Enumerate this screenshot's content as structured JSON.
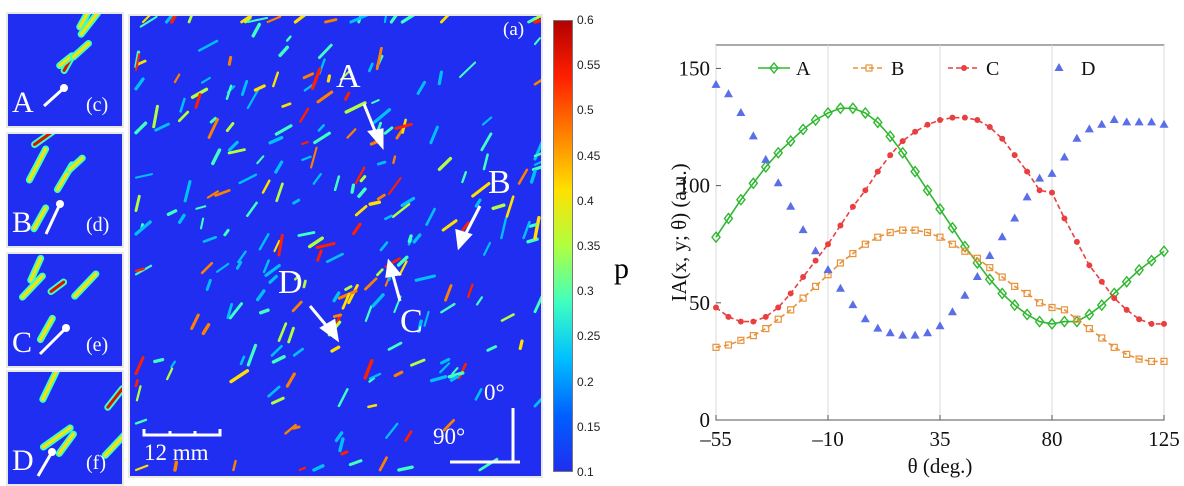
{
  "insets": [
    {
      "point": "A",
      "tag": "(c)"
    },
    {
      "point": "B",
      "tag": "(d)"
    },
    {
      "point": "C",
      "tag": "(e)"
    },
    {
      "point": "D",
      "tag": "(f)"
    }
  ],
  "main_panel": {
    "tag": "(a)",
    "points": [
      "A",
      "B",
      "C",
      "D"
    ],
    "scale_bar": "12 mm",
    "orient_0": "0°",
    "orient_90": "90°"
  },
  "colorbar": {
    "label": "p",
    "ticks": [
      "0.6",
      "0.55",
      "0.5",
      "0.45",
      "0.4",
      "0.35",
      "0.3",
      "0.25",
      "0.2",
      "0.15",
      "0.1"
    ],
    "colors": [
      "#b30000",
      "#ff2000",
      "#ff8000",
      "#ffe000",
      "#b0ff40",
      "#40ffc0",
      "#00c0ff",
      "#0060ff",
      "#1f2ef0"
    ]
  },
  "chart_data": {
    "type": "line",
    "xlabel": "θ (deg.)",
    "ylabel": "IA(x, y; θ) (a.u.)",
    "xlim": [
      -55,
      125
    ],
    "ylim": [
      0,
      160
    ],
    "xticks": [
      "-55",
      "-10",
      "35",
      "80",
      "125"
    ],
    "yticks": [
      "0",
      "50",
      "100",
      "150"
    ],
    "grid": "vertical",
    "legend": "top",
    "x": [
      -55,
      -50,
      -45,
      -40,
      -35,
      -30,
      -25,
      -20,
      -15,
      -10,
      -5,
      0,
      5,
      10,
      15,
      20,
      25,
      30,
      35,
      40,
      45,
      50,
      55,
      60,
      65,
      70,
      75,
      80,
      85,
      90,
      95,
      100,
      105,
      110,
      115,
      120,
      125
    ],
    "series": [
      {
        "name": "A",
        "color": "#2fb82f",
        "marker": "diamond",
        "dash": "solid",
        "values": [
          78,
          86,
          94,
          101,
          108,
          114,
          119,
          124,
          128,
          131,
          133,
          133,
          131,
          127,
          121,
          114,
          106,
          98,
          90,
          82,
          74,
          67,
          60,
          54,
          49,
          45,
          42,
          41,
          42,
          42,
          45,
          49,
          54,
          59,
          64,
          68,
          72
        ]
      },
      {
        "name": "B",
        "color": "#e8923a",
        "marker": "square",
        "dash": "dash",
        "values": [
          31,
          32,
          34,
          36,
          39,
          43,
          47,
          52,
          57,
          62,
          67,
          71,
          75,
          78,
          80,
          81,
          81,
          80,
          78,
          75,
          72,
          69,
          65,
          61,
          57,
          54,
          50,
          48,
          47,
          43,
          39,
          35,
          31,
          28,
          26,
          25,
          25
        ]
      },
      {
        "name": "C",
        "color": "#e84040",
        "marker": "circle",
        "dash": "dash",
        "values": [
          48,
          44,
          42,
          42,
          44,
          48,
          54,
          61,
          68,
          75,
          83,
          91,
          98,
          106,
          113,
          119,
          123,
          126,
          128,
          129,
          129,
          128,
          125,
          120,
          113,
          106,
          98,
          97,
          86,
          76,
          66,
          59,
          52,
          47,
          43,
          41,
          41
        ]
      },
      {
        "name": "D",
        "color": "#5a6ee8",
        "marker": "triangle",
        "dash": "none",
        "values": [
          143,
          139,
          131,
          121,
          111,
          101,
          91,
          81,
          72,
          64,
          56,
          49,
          43,
          39,
          37,
          36,
          36,
          37,
          40,
          46,
          53,
          61,
          70,
          78,
          86,
          95,
          103,
          105,
          112,
          120,
          124,
          126,
          128,
          127,
          127,
          127,
          126
        ]
      }
    ]
  }
}
